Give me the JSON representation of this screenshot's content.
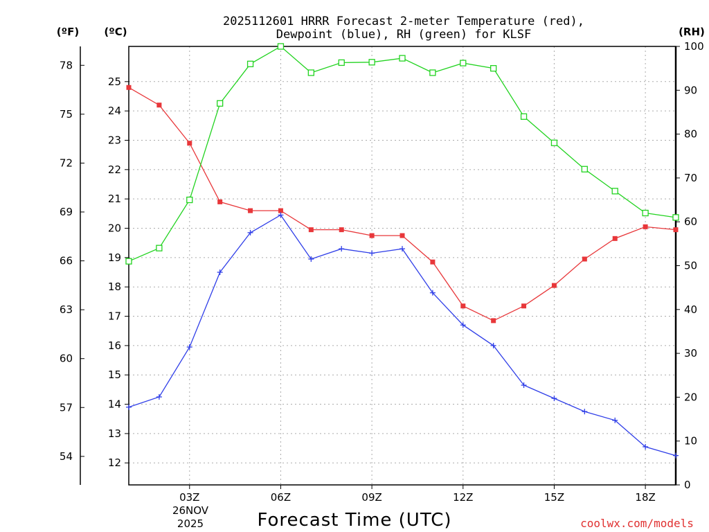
{
  "title": {
    "line1": "2025112601 HRRR Forecast 2-meter Temperature (red),",
    "line2": "Dewpoint (blue), RH (green) for KLSF"
  },
  "units": {
    "fahrenheit": "(ºF)",
    "celsius": "(ºC)",
    "rh": "(RH)"
  },
  "x_axis": {
    "label": "Forecast Time (UTC)",
    "date_line1": "26NOV",
    "date_line2": "2025"
  },
  "credit": "coolwx.com/models",
  "colors": {
    "temperature": "#e8373a",
    "dewpoint": "#2f3ee8",
    "rh": "#22d320",
    "grid": "#aaaaaa"
  },
  "chart_data": {
    "type": "line",
    "title": "2025112601 HRRR Forecast 2-meter Temperature (red), Dewpoint (blue), RH (green) for KLSF",
    "xlabel": "Forecast Time (UTC)",
    "x_hours": [
      1,
      2,
      3,
      4,
      5,
      6,
      7,
      8,
      9,
      10,
      11,
      12,
      13,
      14,
      15,
      16,
      17,
      18,
      19
    ],
    "xlim": [
      1,
      19
    ],
    "x_ticks": [
      {
        "hour": 3,
        "label": "03Z"
      },
      {
        "hour": 6,
        "label": "06Z"
      },
      {
        "hour": 9,
        "label": "09Z"
      },
      {
        "hour": 12,
        "label": "12Z"
      },
      {
        "hour": 15,
        "label": "15Z"
      },
      {
        "hour": 18,
        "label": "18Z"
      }
    ],
    "y_left_celsius": {
      "lim": [
        11.25,
        26.2
      ],
      "ticks": [
        12,
        13,
        14,
        15,
        16,
        17,
        18,
        19,
        20,
        21,
        22,
        23,
        24,
        25
      ]
    },
    "y_left_fahrenheit": {
      "ticks": [
        54,
        57,
        60,
        63,
        66,
        69,
        72,
        75,
        78
      ]
    },
    "y_right_rh": {
      "lim": [
        0,
        100
      ],
      "ticks": [
        0,
        10,
        20,
        30,
        40,
        50,
        60,
        70,
        80,
        90,
        100
      ]
    },
    "grid": true,
    "series": [
      {
        "name": "Temperature",
        "axis": "celsius",
        "marker": "filled-square",
        "values": [
          24.8,
          24.2,
          22.9,
          20.9,
          20.6,
          20.6,
          19.95,
          19.95,
          19.75,
          19.75,
          18.85,
          17.35,
          16.85,
          17.35,
          18.05,
          18.95,
          19.65,
          20.05,
          19.95
        ]
      },
      {
        "name": "Dewpoint",
        "axis": "celsius",
        "marker": "plus",
        "values": [
          13.9,
          14.25,
          15.95,
          18.5,
          19.85,
          20.45,
          18.95,
          19.3,
          19.15,
          19.3,
          17.8,
          16.7,
          16.0,
          14.65,
          14.2,
          13.75,
          13.45,
          12.55,
          12.25
        ]
      },
      {
        "name": "RH",
        "axis": "rh",
        "marker": "open-square",
        "values": [
          51,
          54,
          65,
          87,
          96,
          100,
          94,
          96.3,
          96.4,
          97.3,
          94,
          96.2,
          95,
          84,
          78,
          72,
          67,
          62,
          61
        ]
      }
    ]
  }
}
